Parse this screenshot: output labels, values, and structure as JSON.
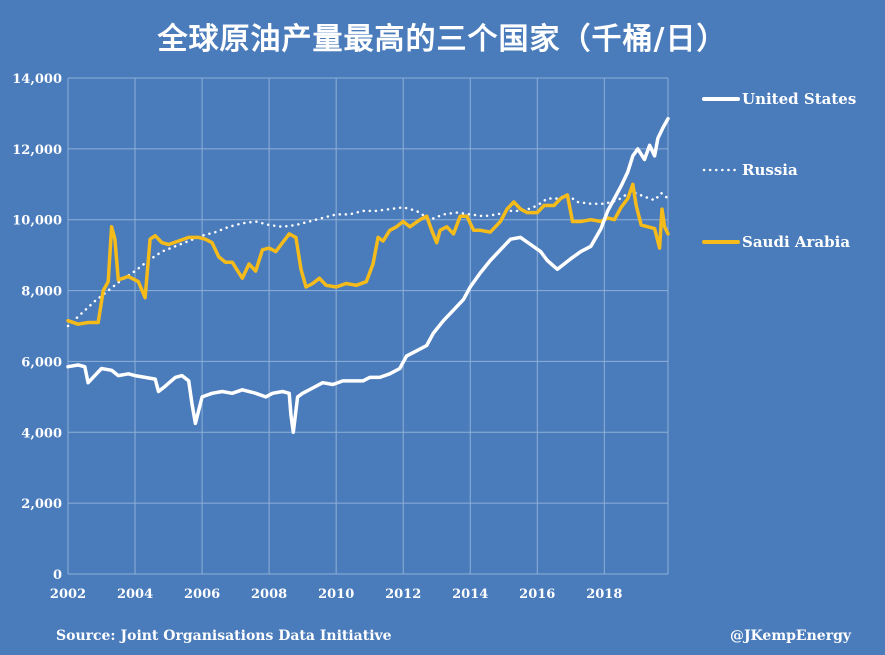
{
  "title": "全球原油产量最高的三个国家（千桶/日）",
  "source": "Source: Joint Organisations Data Initiative",
  "credit": "@JKempEnergy",
  "chart_data": {
    "type": "line",
    "title": "全球原油产量最高的三个国家（千桶/日）",
    "xlabel": "",
    "ylabel": "",
    "xlim": [
      2002,
      2019.9
    ],
    "ylim": [
      0,
      14000
    ],
    "x_ticks": [
      "2002",
      "2004",
      "2006",
      "2008",
      "2010",
      "2012",
      "2014",
      "2016",
      "2018"
    ],
    "y_ticks": [
      "0",
      "2,000",
      "4,000",
      "6,000",
      "8,000",
      "10,000",
      "12,000",
      "14,000"
    ],
    "grid": true,
    "legend_position": "right",
    "series": [
      {
        "name": "United States",
        "color": "#ffffff",
        "style": "solid",
        "points": [
          [
            2002.0,
            5850
          ],
          [
            2002.3,
            5900
          ],
          [
            2002.5,
            5850
          ],
          [
            2002.6,
            5400
          ],
          [
            2002.8,
            5600
          ],
          [
            2003.0,
            5800
          ],
          [
            2003.3,
            5750
          ],
          [
            2003.5,
            5600
          ],
          [
            2003.8,
            5650
          ],
          [
            2004.0,
            5600
          ],
          [
            2004.3,
            5550
          ],
          [
            2004.6,
            5500
          ],
          [
            2004.7,
            5150
          ],
          [
            2004.9,
            5300
          ],
          [
            2005.2,
            5550
          ],
          [
            2005.4,
            5600
          ],
          [
            2005.6,
            5450
          ],
          [
            2005.7,
            4800
          ],
          [
            2005.8,
            4250
          ],
          [
            2006.0,
            5000
          ],
          [
            2006.3,
            5100
          ],
          [
            2006.6,
            5150
          ],
          [
            2006.9,
            5100
          ],
          [
            2007.2,
            5200
          ],
          [
            2007.6,
            5100
          ],
          [
            2007.9,
            5000
          ],
          [
            2008.1,
            5100
          ],
          [
            2008.4,
            5150
          ],
          [
            2008.6,
            5100
          ],
          [
            2008.65,
            4500
          ],
          [
            2008.72,
            4000
          ],
          [
            2008.85,
            5000
          ],
          [
            2009.0,
            5100
          ],
          [
            2009.3,
            5250
          ],
          [
            2009.6,
            5400
          ],
          [
            2009.9,
            5350
          ],
          [
            2010.2,
            5450
          ],
          [
            2010.5,
            5450
          ],
          [
            2010.8,
            5450
          ],
          [
            2011.0,
            5550
          ],
          [
            2011.3,
            5550
          ],
          [
            2011.6,
            5650
          ],
          [
            2011.9,
            5800
          ],
          [
            2012.1,
            6150
          ],
          [
            2012.4,
            6300
          ],
          [
            2012.7,
            6450
          ],
          [
            2012.9,
            6800
          ],
          [
            2013.2,
            7150
          ],
          [
            2013.5,
            7450
          ],
          [
            2013.8,
            7750
          ],
          [
            2014.0,
            8100
          ],
          [
            2014.3,
            8500
          ],
          [
            2014.6,
            8850
          ],
          [
            2014.9,
            9150
          ],
          [
            2015.2,
            9450
          ],
          [
            2015.5,
            9500
          ],
          [
            2015.8,
            9300
          ],
          [
            2016.1,
            9100
          ],
          [
            2016.3,
            8850
          ],
          [
            2016.6,
            8600
          ],
          [
            2016.8,
            8750
          ],
          [
            2017.0,
            8900
          ],
          [
            2017.3,
            9100
          ],
          [
            2017.6,
            9250
          ],
          [
            2017.9,
            9750
          ],
          [
            2018.1,
            10250
          ],
          [
            2018.3,
            10600
          ],
          [
            2018.5,
            10950
          ],
          [
            2018.7,
            11350
          ],
          [
            2018.85,
            11800
          ],
          [
            2019.0,
            12000
          ],
          [
            2019.2,
            11700
          ],
          [
            2019.35,
            12100
          ],
          [
            2019.5,
            11800
          ],
          [
            2019.6,
            12300
          ],
          [
            2019.75,
            12600
          ],
          [
            2019.9,
            12850
          ]
        ]
      },
      {
        "name": "Russia",
        "color": "#ffffff",
        "style": "dotted",
        "points": [
          [
            2002.0,
            7000
          ],
          [
            2002.4,
            7350
          ],
          [
            2002.8,
            7700
          ],
          [
            2003.2,
            8000
          ],
          [
            2003.6,
            8300
          ],
          [
            2004.0,
            8550
          ],
          [
            2004.4,
            8850
          ],
          [
            2004.8,
            9100
          ],
          [
            2005.2,
            9250
          ],
          [
            2005.6,
            9400
          ],
          [
            2006.0,
            9550
          ],
          [
            2006.4,
            9650
          ],
          [
            2006.8,
            9800
          ],
          [
            2007.2,
            9900
          ],
          [
            2007.6,
            9950
          ],
          [
            2008.0,
            9850
          ],
          [
            2008.4,
            9800
          ],
          [
            2008.8,
            9850
          ],
          [
            2009.2,
            9950
          ],
          [
            2009.6,
            10050
          ],
          [
            2010.0,
            10150
          ],
          [
            2010.4,
            10150
          ],
          [
            2010.8,
            10250
          ],
          [
            2011.2,
            10250
          ],
          [
            2011.6,
            10300
          ],
          [
            2012.0,
            10350
          ],
          [
            2012.4,
            10250
          ],
          [
            2012.8,
            10000
          ],
          [
            2013.2,
            10150
          ],
          [
            2013.6,
            10200
          ],
          [
            2014.0,
            10150
          ],
          [
            2014.4,
            10100
          ],
          [
            2014.8,
            10150
          ],
          [
            2015.2,
            10250
          ],
          [
            2015.6,
            10250
          ],
          [
            2016.0,
            10400
          ],
          [
            2016.3,
            10600
          ],
          [
            2016.6,
            10600
          ],
          [
            2016.9,
            10700
          ],
          [
            2017.2,
            10500
          ],
          [
            2017.6,
            10450
          ],
          [
            2018.0,
            10450
          ],
          [
            2018.4,
            10550
          ],
          [
            2018.8,
            10800
          ],
          [
            2019.2,
            10650
          ],
          [
            2019.5,
            10550
          ],
          [
            2019.7,
            10750
          ],
          [
            2019.9,
            10600
          ]
        ]
      },
      {
        "name": "Saudi Arabia",
        "color": "#f5bb1a",
        "style": "solid",
        "points": [
          [
            2002.0,
            7150
          ],
          [
            2002.3,
            7050
          ],
          [
            2002.6,
            7100
          ],
          [
            2002.9,
            7100
          ],
          [
            2003.05,
            8000
          ],
          [
            2003.2,
            8250
          ],
          [
            2003.3,
            9800
          ],
          [
            2003.4,
            9450
          ],
          [
            2003.5,
            8300
          ],
          [
            2003.8,
            8400
          ],
          [
            2004.1,
            8250
          ],
          [
            2004.3,
            7800
          ],
          [
            2004.45,
            9450
          ],
          [
            2004.6,
            9550
          ],
          [
            2004.8,
            9350
          ],
          [
            2005.0,
            9300
          ],
          [
            2005.3,
            9400
          ],
          [
            2005.6,
            9500
          ],
          [
            2005.9,
            9500
          ],
          [
            2006.1,
            9450
          ],
          [
            2006.3,
            9350
          ],
          [
            2006.5,
            8950
          ],
          [
            2006.7,
            8800
          ],
          [
            2006.9,
            8800
          ],
          [
            2007.2,
            8350
          ],
          [
            2007.4,
            8750
          ],
          [
            2007.6,
            8550
          ],
          [
            2007.8,
            9150
          ],
          [
            2008.0,
            9200
          ],
          [
            2008.2,
            9100
          ],
          [
            2008.4,
            9350
          ],
          [
            2008.6,
            9600
          ],
          [
            2008.8,
            9500
          ],
          [
            2008.95,
            8600
          ],
          [
            2009.1,
            8100
          ],
          [
            2009.3,
            8200
          ],
          [
            2009.5,
            8350
          ],
          [
            2009.7,
            8150
          ],
          [
            2010.0,
            8100
          ],
          [
            2010.3,
            8200
          ],
          [
            2010.6,
            8150
          ],
          [
            2010.9,
            8250
          ],
          [
            2011.1,
            8750
          ],
          [
            2011.25,
            9500
          ],
          [
            2011.4,
            9400
          ],
          [
            2011.6,
            9700
          ],
          [
            2011.8,
            9800
          ],
          [
            2012.0,
            9950
          ],
          [
            2012.2,
            9800
          ],
          [
            2012.5,
            10000
          ],
          [
            2012.7,
            10100
          ],
          [
            2012.85,
            9700
          ],
          [
            2013.0,
            9350
          ],
          [
            2013.1,
            9700
          ],
          [
            2013.3,
            9800
          ],
          [
            2013.5,
            9600
          ],
          [
            2013.7,
            10100
          ],
          [
            2013.9,
            10100
          ],
          [
            2014.1,
            9700
          ],
          [
            2014.3,
            9700
          ],
          [
            2014.6,
            9650
          ],
          [
            2014.9,
            9950
          ],
          [
            2015.1,
            10300
          ],
          [
            2015.3,
            10500
          ],
          [
            2015.5,
            10300
          ],
          [
            2015.7,
            10200
          ],
          [
            2016.0,
            10200
          ],
          [
            2016.2,
            10400
          ],
          [
            2016.5,
            10400
          ],
          [
            2016.7,
            10600
          ],
          [
            2016.9,
            10700
          ],
          [
            2017.05,
            9950
          ],
          [
            2017.3,
            9950
          ],
          [
            2017.6,
            10000
          ],
          [
            2017.9,
            9950
          ],
          [
            2018.1,
            10050
          ],
          [
            2018.3,
            10000
          ],
          [
            2018.5,
            10350
          ],
          [
            2018.7,
            10600
          ],
          [
            2018.85,
            11000
          ],
          [
            2018.95,
            10400
          ],
          [
            2019.1,
            9850
          ],
          [
            2019.3,
            9800
          ],
          [
            2019.5,
            9750
          ],
          [
            2019.65,
            9200
          ],
          [
            2019.72,
            10300
          ],
          [
            2019.8,
            9800
          ],
          [
            2019.9,
            9600
          ]
        ]
      }
    ]
  }
}
